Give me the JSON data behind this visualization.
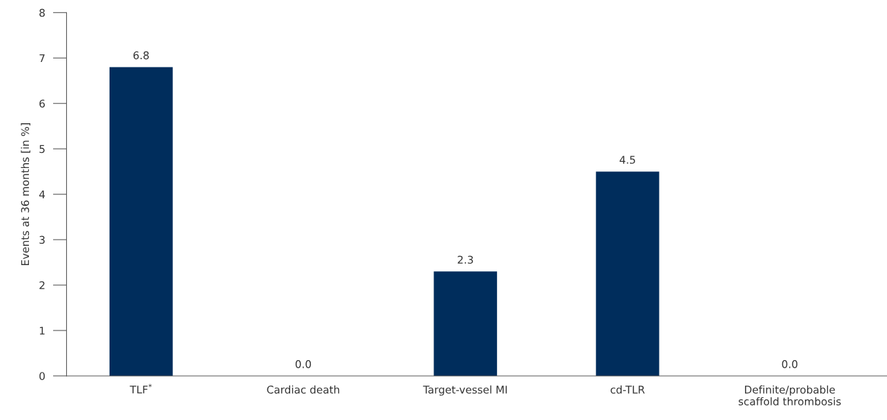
{
  "chart_data": {
    "type": "bar",
    "ylabel": "Events at 36 months [in %]",
    "categories": [
      "TLF$^{*}$",
      "Cardiac death",
      "Target-vessel MI",
      "cd-TLR",
      "Definite/probable\nscaffold thrombosis"
    ],
    "values": [
      6.8,
      0.0,
      2.3,
      4.5,
      0.0
    ],
    "value_labels": [
      "6.8",
      "0.0",
      "2.3",
      "4.5",
      "0.0"
    ],
    "color": "#002d5c",
    "ylim": [
      0,
      8
    ],
    "yticks": [
      0,
      1,
      2,
      3,
      4,
      5,
      6,
      7,
      8
    ],
    "grid": false,
    "legend": false
  }
}
